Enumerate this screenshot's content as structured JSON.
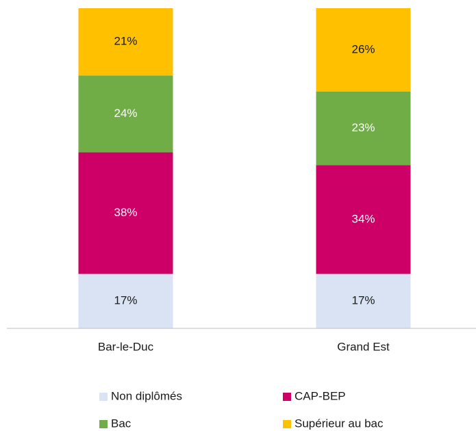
{
  "chart_data": {
    "type": "bar",
    "stacked": true,
    "categories": [
      "Bar-le-Duc",
      "Grand Est"
    ],
    "ylim": [
      0,
      100
    ],
    "series": [
      {
        "name": "Non diplômés",
        "color": "#dae3f3",
        "label_color": "#1a1a1a",
        "values": [
          17,
          17
        ],
        "value_labels": [
          "17%",
          "17%"
        ]
      },
      {
        "name": "CAP-BEP",
        "color": "#cc0066",
        "label_color": "#ffffff",
        "values": [
          38,
          34
        ],
        "value_labels": [
          "38%",
          "34%"
        ]
      },
      {
        "name": "Bac",
        "color": "#70ad47",
        "label_color": "#ffffff",
        "values": [
          24,
          23
        ],
        "value_labels": [
          "24%",
          "23%"
        ]
      },
      {
        "name": "Supérieur au bac",
        "color": "#ffc000",
        "label_color": "#1a1a1a",
        "values": [
          21,
          26
        ],
        "value_labels": [
          "21%",
          "26%"
        ]
      }
    ],
    "legend": "bottom"
  }
}
